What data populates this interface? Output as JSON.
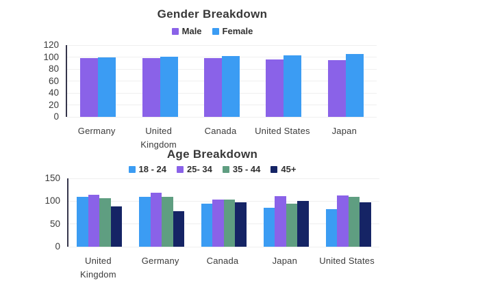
{
  "page": {
    "background_color": "#ffffff",
    "text_color": "#3a3a3a",
    "gridline_color": "#efefef",
    "axis_line_color": "#34344a"
  },
  "chart_data": [
    {
      "type": "bar",
      "title": "Gender Breakdown",
      "categories": [
        "Germany",
        "United\nKingdom",
        "Canada",
        "United States",
        "Japan"
      ],
      "series": [
        {
          "name": "Male",
          "color": "#8a62e8",
          "values": [
            98,
            98,
            98,
            96,
            95
          ]
        },
        {
          "name": "Female",
          "color": "#3b9cf3",
          "values": [
            100,
            101,
            102,
            103,
            105
          ]
        }
      ],
      "xlabel": "",
      "ylabel": "",
      "ylim": [
        0,
        120
      ],
      "yticks": [
        0,
        20,
        40,
        60,
        80,
        100,
        120
      ],
      "grid": true,
      "legend_position": "top"
    },
    {
      "type": "bar",
      "title": "Age Breakdown",
      "categories": [
        "United\nKingdom",
        "Germany",
        "Canada",
        "Japan",
        "United States"
      ],
      "series": [
        {
          "name": "18 - 24",
          "color": "#3b9cf3",
          "values": [
            110,
            109,
            94,
            85,
            82
          ]
        },
        {
          "name": "25- 34",
          "color": "#8a62e8",
          "values": [
            114,
            118,
            103,
            111,
            112
          ]
        },
        {
          "name": "35 - 44",
          "color": "#5f9e81",
          "values": [
            106,
            110,
            104,
            95,
            109
          ]
        },
        {
          "name": "45+",
          "color": "#152465",
          "values": [
            88,
            78,
            97,
            101,
            98
          ]
        }
      ],
      "xlabel": "",
      "ylabel": "",
      "ylim": [
        0,
        150
      ],
      "yticks": [
        0,
        50,
        100,
        150
      ],
      "grid": true,
      "legend_position": "top"
    }
  ]
}
